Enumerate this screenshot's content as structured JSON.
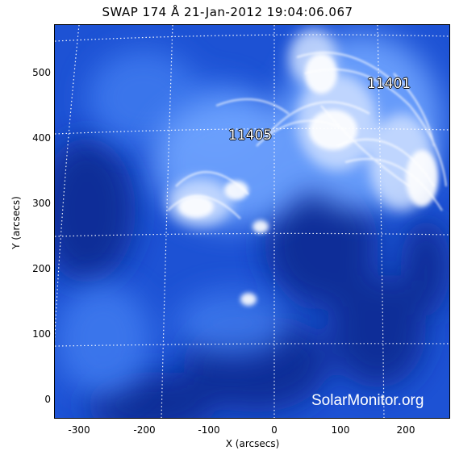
{
  "title": "SWAP 174 Å 21-Jan-2012 19:04:06.067",
  "axes": {
    "xlabel": "X (arcsecs)",
    "ylabel": "Y (arcsecs)",
    "xticks": [
      "-300",
      "-200",
      "-100",
      "0",
      "100",
      "200"
    ],
    "yticks": [
      "0",
      "100",
      "200",
      "300",
      "400",
      "500"
    ]
  },
  "active_regions": [
    {
      "label": "11405"
    },
    {
      "label": "11401"
    }
  ],
  "watermark": "SolarMonitor.org",
  "colors": {
    "background": "#1c4fcf",
    "bright": "#ffffff",
    "dark": "#0b2e96",
    "grid": "#ffffff"
  }
}
